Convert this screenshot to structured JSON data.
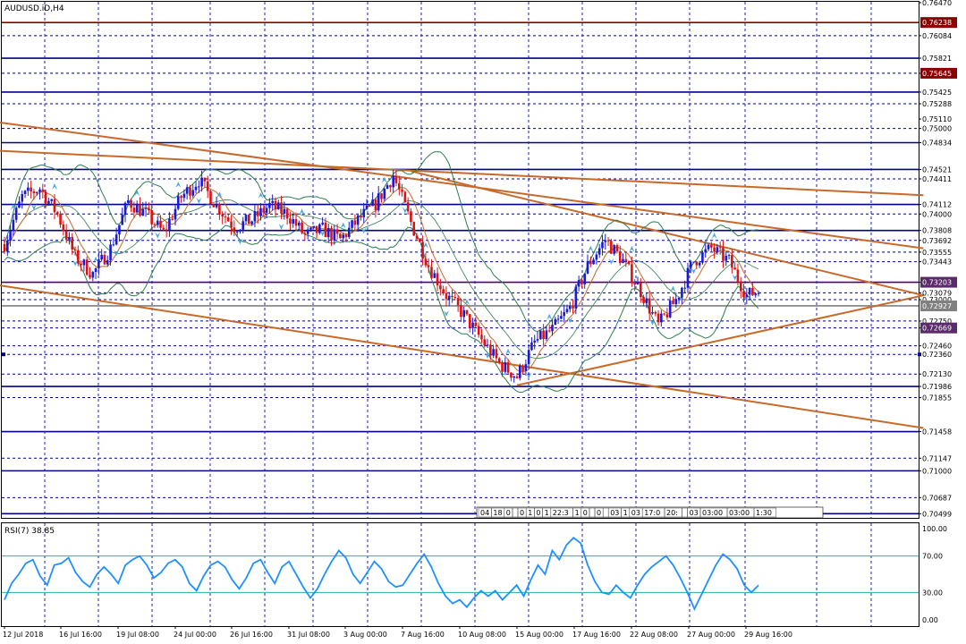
{
  "chart_data": {
    "type": "candlestick",
    "title": "AUDUSD.iD,H4",
    "price_axis": {
      "range": [
        0.7045,
        0.7648
      ],
      "ticks": [
        "0.76470",
        "0.76084",
        "0.75821",
        "0.75645",
        "0.75425",
        "0.75288",
        "0.75110",
        "0.75000",
        "0.74834",
        "0.74521",
        "0.74411",
        "0.74112",
        "0.74000",
        "0.73808",
        "0.73692",
        "0.73555",
        "0.73443",
        "0.73203",
        "0.73079",
        "0.73000",
        "0.72750",
        "0.72669",
        "0.72460",
        "0.72360",
        "0.72130",
        "0.71986",
        "0.71855",
        "0.71458",
        "0.71147",
        "0.71000",
        "0.70687",
        "0.70499"
      ],
      "boxed_labels": [
        {
          "text": "0.76238",
          "value": 0.76238,
          "color": "#8b0000"
        },
        {
          "text": "0.75645",
          "value": 0.75645,
          "color": "#8b0000"
        },
        {
          "text": "0.73203",
          "value": 0.73203,
          "color": "#5a2a6a"
        },
        {
          "text": "0.72927",
          "value": 0.72927,
          "color": "#808080"
        },
        {
          "text": "0.72669",
          "value": 0.72669,
          "color": "#5a2a6a"
        }
      ]
    },
    "time_axis": {
      "labels": [
        "12 Jul 2018",
        "16 Jul 16:00",
        "19 Jul 08:00",
        "24 Jul 00:00",
        "26 Jul 16:00",
        "31 Jul 08:00",
        "3 Aug 00:00",
        "7 Aug 16:00",
        "10 Aug 08:00",
        "15 Aug 00:00",
        "17 Aug 16:00",
        "22 Aug 08:00",
        "27 Aug 00:00",
        "29 Aug 16:00"
      ],
      "mini_labels": [
        "04",
        "18",
        "0",
        "",
        "0",
        "1",
        "0",
        "1",
        "22:3",
        "1",
        "0",
        "",
        "0",
        "",
        "03",
        "1",
        "03",
        "17:0",
        "20:",
        "",
        "03",
        "03:00",
        "03:00",
        "1:30"
      ]
    },
    "horizontal_levels": [
      {
        "value": 0.76238,
        "color": "#8b0000",
        "style": "solid"
      },
      {
        "value": 0.75821,
        "color": "#00008b",
        "style": "solid"
      },
      {
        "value": 0.75425,
        "color": "#00008b",
        "style": "solid"
      },
      {
        "value": 0.74834,
        "color": "#00008b",
        "style": "solid"
      },
      {
        "value": 0.74521,
        "color": "#00008b",
        "style": "solid"
      },
      {
        "value": 0.74112,
        "color": "#00008b",
        "style": "solid"
      },
      {
        "value": 0.73808,
        "color": "#00008b",
        "style": "solid"
      },
      {
        "value": 0.73203,
        "color": "#4b0082",
        "style": "solid"
      },
      {
        "value": 0.72927,
        "color": "#808080",
        "style": "solid"
      },
      {
        "value": 0.71986,
        "color": "#00008b",
        "style": "solid"
      },
      {
        "value": 0.71458,
        "color": "#00008b",
        "style": "solid"
      },
      {
        "value": 0.71,
        "color": "#00008b",
        "style": "solid"
      },
      {
        "value": 0.70499,
        "color": "#00008b",
        "style": "solid"
      },
      {
        "value": 0.76084,
        "color": "#000080",
        "style": "dash"
      },
      {
        "value": 0.75645,
        "color": "#000080",
        "style": "dash"
      },
      {
        "value": 0.75288,
        "color": "#000080",
        "style": "dash"
      },
      {
        "value": 0.75,
        "color": "#000080",
        "style": "dash"
      },
      {
        "value": 0.74411,
        "color": "#000080",
        "style": "dash"
      },
      {
        "value": 0.74,
        "color": "#000080",
        "style": "dash"
      },
      {
        "value": 0.73692,
        "color": "#000080",
        "style": "dash"
      },
      {
        "value": 0.73555,
        "color": "#000080",
        "style": "dash"
      },
      {
        "value": 0.73443,
        "color": "#000080",
        "style": "dash"
      },
      {
        "value": 0.73079,
        "color": "#000080",
        "style": "dash"
      },
      {
        "value": 0.73,
        "color": "#000080",
        "style": "dash"
      },
      {
        "value": 0.7275,
        "color": "#000080",
        "style": "dash"
      },
      {
        "value": 0.72669,
        "color": "#000080",
        "style": "dash"
      },
      {
        "value": 0.7246,
        "color": "#000080",
        "style": "dash"
      },
      {
        "value": 0.7236,
        "color": "#000080",
        "style": "dash"
      },
      {
        "value": 0.7213,
        "color": "#000080",
        "style": "dash"
      },
      {
        "value": 0.71855,
        "color": "#000080",
        "style": "dash"
      },
      {
        "value": 0.71147,
        "color": "#000080",
        "style": "dash"
      },
      {
        "value": 0.70687,
        "color": "#000080",
        "style": "dash"
      }
    ],
    "close_path": [
      [
        0,
        0.7365
      ],
      [
        6,
        0.742
      ],
      [
        12,
        0.743
      ],
      [
        18,
        0.74
      ],
      [
        24,
        0.735
      ],
      [
        30,
        0.733
      ],
      [
        36,
        0.736
      ],
      [
        42,
        0.7415
      ],
      [
        48,
        0.74
      ],
      [
        54,
        0.7378
      ],
      [
        60,
        0.742
      ],
      [
        66,
        0.744
      ],
      [
        72,
        0.741
      ],
      [
        78,
        0.7385
      ],
      [
        84,
        0.7393
      ],
      [
        90,
        0.741
      ],
      [
        96,
        0.74
      ],
      [
        102,
        0.7375
      ],
      [
        108,
        0.7382
      ],
      [
        114,
        0.737
      ],
      [
        120,
        0.7393
      ],
      [
        126,
        0.7412
      ],
      [
        132,
        0.7445
      ],
      [
        138,
        0.739
      ],
      [
        144,
        0.734
      ],
      [
        150,
        0.7305
      ],
      [
        156,
        0.7282
      ],
      [
        162,
        0.7253
      ],
      [
        168,
        0.7225
      ],
      [
        174,
        0.721
      ],
      [
        180,
        0.725
      ],
      [
        186,
        0.7265
      ],
      [
        192,
        0.729
      ],
      [
        198,
        0.734
      ],
      [
        204,
        0.737
      ],
      [
        210,
        0.7345
      ],
      [
        216,
        0.731
      ],
      [
        222,
        0.727
      ],
      [
        228,
        0.73
      ],
      [
        234,
        0.7345
      ],
      [
        240,
        0.736
      ],
      [
        246,
        0.7345
      ],
      [
        252,
        0.7305
      ],
      [
        256,
        0.731
      ]
    ],
    "trendlines": [
      {
        "from": [
          -8,
          0.751
        ],
        "to": [
          312,
          0.736
        ],
        "color": "#c8692a"
      },
      {
        "from": [
          -8,
          0.7475
        ],
        "to": [
          312,
          0.7422
        ],
        "color": "#c8692a"
      },
      {
        "from": [
          -8,
          0.732
        ],
        "to": [
          312,
          0.715
        ],
        "color": "#c8692a"
      },
      {
        "from": [
          138,
          0.745
        ],
        "to": [
          312,
          0.7305
        ],
        "color": "#c8692a"
      },
      {
        "from": [
          174,
          0.72
        ],
        "to": [
          312,
          0.7305
        ],
        "color": "#c8692a"
      }
    ],
    "rsi": {
      "label": "RSI(7) 38.85",
      "range": [
        0,
        100
      ],
      "ticks": [
        "100.00",
        "70.00",
        "30.00",
        "0.00"
      ],
      "levels": [
        70,
        30
      ],
      "values": [
        22,
        40,
        50,
        62,
        66,
        48,
        38,
        60,
        62,
        68,
        52,
        42,
        36,
        50,
        58,
        50,
        40,
        60,
        66,
        70,
        60,
        46,
        52,
        62,
        66,
        58,
        40,
        32,
        48,
        60,
        64,
        58,
        44,
        34,
        46,
        62,
        66,
        52,
        40,
        58,
        64,
        50,
        36,
        24,
        34,
        50,
        64,
        76,
        68,
        50,
        40,
        52,
        64,
        56,
        42,
        36,
        38,
        50,
        62,
        72,
        58,
        40,
        26,
        18,
        22,
        14,
        24,
        32,
        26,
        32,
        22,
        30,
        38,
        26,
        44,
        60,
        50,
        76,
        66,
        82,
        90,
        84,
        60,
        42,
        30,
        28,
        38,
        30,
        24,
        38,
        50,
        58,
        64,
        70,
        60,
        46,
        30,
        12,
        28,
        44,
        60,
        72,
        66,
        56,
        38,
        30,
        38
      ]
    }
  },
  "colors": {
    "bull": "#1a1ad0",
    "bear": "#dd1111",
    "band": "#2e7d4f",
    "ma": "#c8692a",
    "rsi": "#1e90ff",
    "rsi_level": "#20b2aa",
    "grid": "#1f1fbf",
    "arrow": "#4aa8e0"
  }
}
